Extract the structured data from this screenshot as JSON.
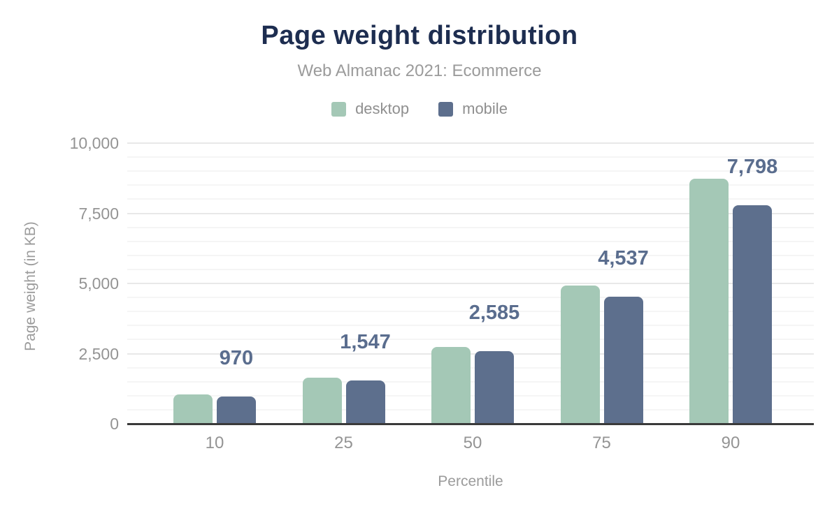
{
  "title": "Page weight distribution",
  "subtitle": "Web Almanac 2021: Ecommerce",
  "chart_data": {
    "type": "bar",
    "title": "Page weight distribution",
    "subtitle": "Web Almanac 2021: Ecommerce",
    "categories": [
      "10",
      "25",
      "50",
      "75",
      "90"
    ],
    "series": [
      {
        "name": "desktop",
        "color": "#a4c8b6",
        "values": [
          1050,
          1650,
          2730,
          4930,
          8730
        ]
      },
      {
        "name": "mobile",
        "color": "#5d6f8d",
        "values": [
          970,
          1547,
          2585,
          4537,
          7798
        ]
      }
    ],
    "data_labels": {
      "anchored_series": "mobile",
      "values": [
        "970",
        "1,547",
        "2,585",
        "4,537",
        "7,798"
      ],
      "color": "#5a6d8e"
    },
    "xlabel": "Percentile",
    "ylabel": "Page weight (in KB)",
    "ylim": [
      0,
      10000
    ],
    "y_major_ticks": [
      0,
      2500,
      5000,
      7500,
      10000
    ],
    "y_tick_labels": [
      "0",
      "2,500",
      "5,000",
      "7,500",
      "10,000"
    ],
    "y_minor_step": 500,
    "grid": "horizontal",
    "legend_position": "top"
  },
  "colors": {
    "title": "#1d2d50",
    "subtitle": "#9b9b9b",
    "tick_label": "#949494",
    "legend_label": "#8f8f8f",
    "desktop_bar": "#a4c8b6",
    "mobile_bar": "#5d6f8d",
    "value_label": "#5a6d8e",
    "axis_line": "#3a3a3a",
    "grid_major": "#e8e8e8",
    "grid_minor": "#f5f5f5"
  }
}
